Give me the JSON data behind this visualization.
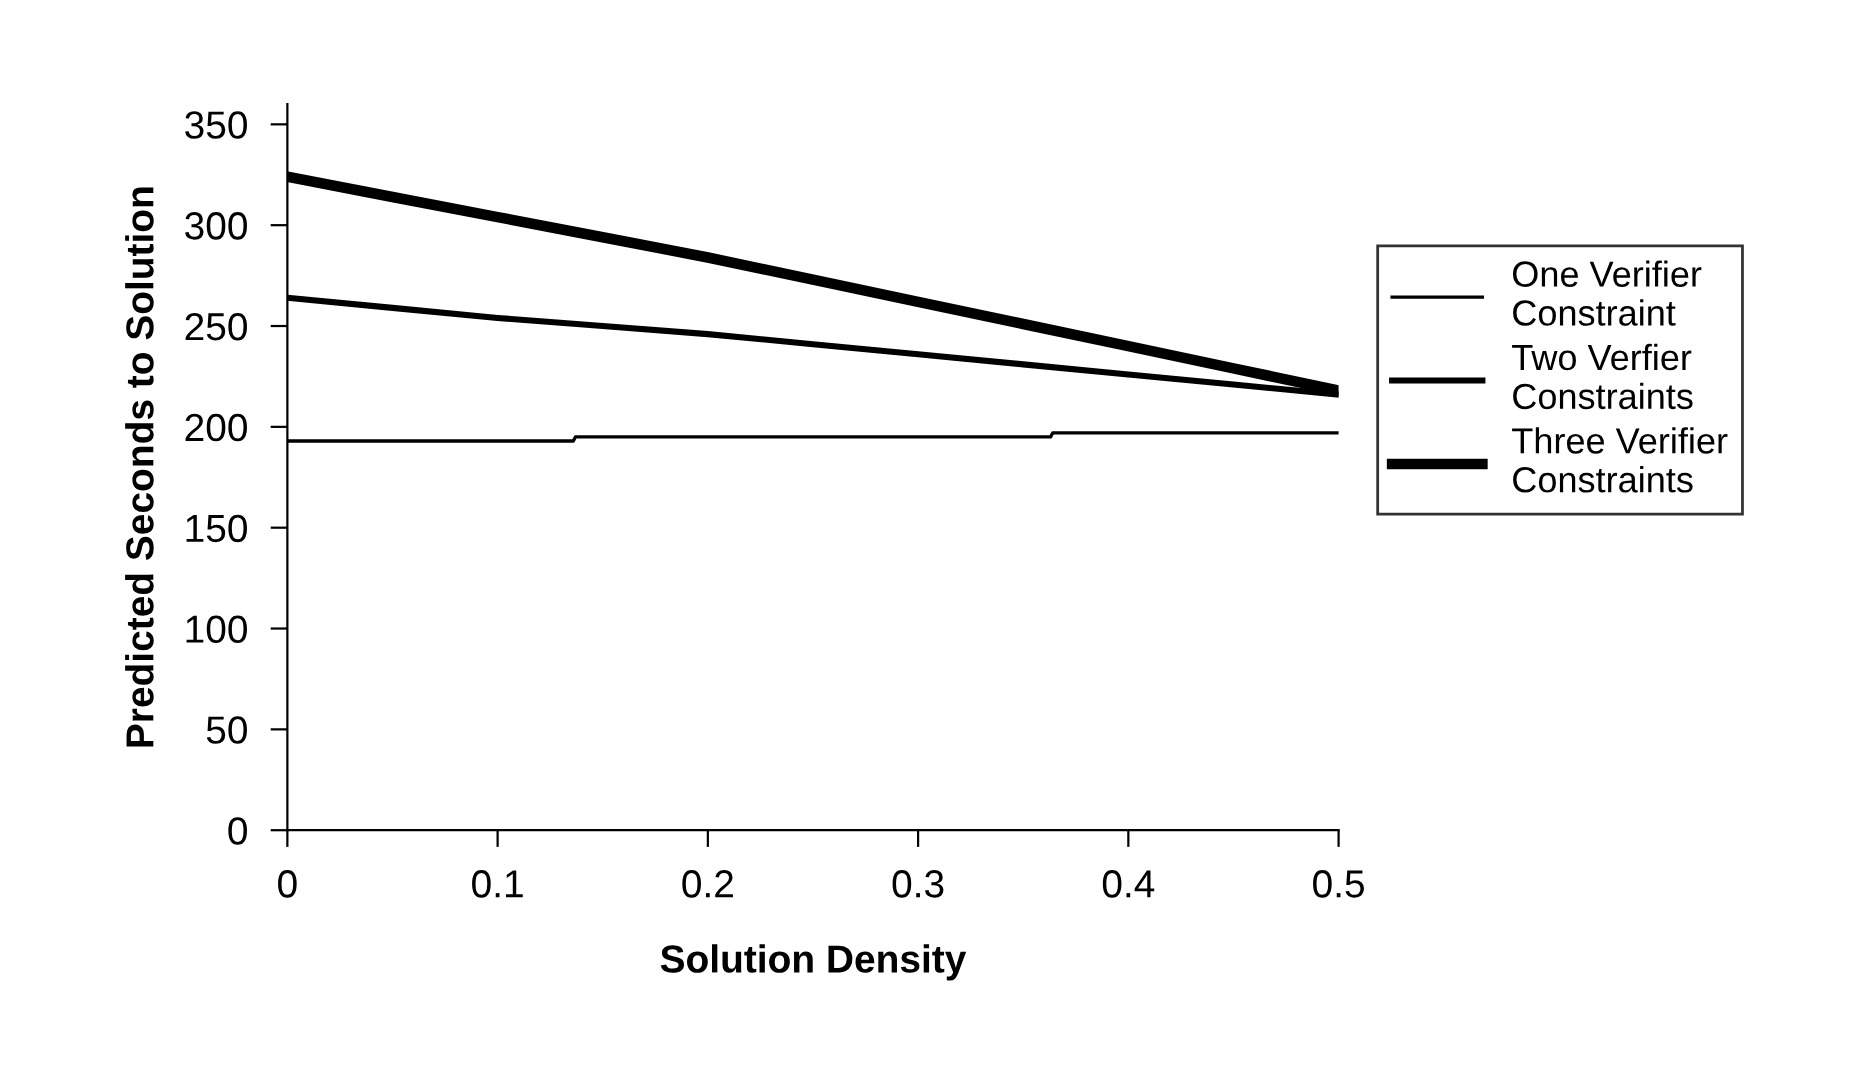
{
  "chart_data": {
    "type": "line",
    "xlabel": "Solution Density",
    "ylabel": "Predicted Seconds to Solution",
    "xlim": [
      0,
      0.5
    ],
    "ylim": [
      0,
      360
    ],
    "xticks": [
      0,
      0.1,
      0.2,
      0.3,
      0.4,
      0.5
    ],
    "yticks": [
      0,
      50,
      100,
      150,
      200,
      250,
      300,
      350
    ],
    "grid": false,
    "legend": "right",
    "marker": "none",
    "line_style": "solid",
    "series": [
      {
        "name": "One Verifier\nConstraint",
        "color": "#000000",
        "x": [
          0,
          0.136,
          0.137,
          0.363,
          0.364,
          0.5
        ],
        "values": [
          193,
          193,
          195,
          195,
          197,
          197
        ]
      },
      {
        "name": "Two Verfier\nConstraints",
        "color": "#000000",
        "x": [
          0,
          0.05,
          0.1,
          0.15,
          0.2,
          0.25,
          0.3,
          0.35,
          0.4,
          0.45,
          0.5
        ],
        "values": [
          264,
          259,
          254,
          250,
          246,
          241,
          236,
          231,
          226,
          221,
          216
        ]
      },
      {
        "name": "Three Verifier\nConstraints",
        "color": "#000000",
        "x": [
          0,
          0.05,
          0.1,
          0.15,
          0.2,
          0.25,
          0.3,
          0.35,
          0.4,
          0.45,
          0.5
        ],
        "values": [
          324,
          314,
          304,
          294,
          284,
          273,
          262,
          251,
          240,
          229,
          218
        ]
      }
    ]
  }
}
